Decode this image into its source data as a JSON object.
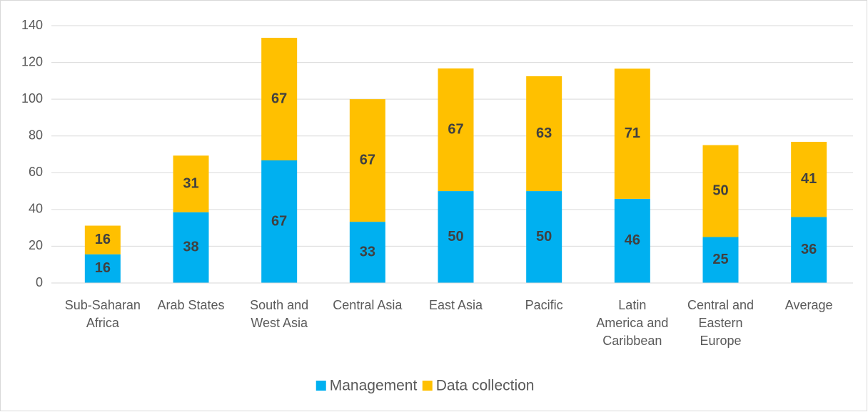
{
  "chart_data": {
    "type": "stacked_bar",
    "categories": [
      "Sub-Saharan Africa",
      "Arab States",
      "South and West Asia",
      "Central Asia",
      "East Asia",
      "Pacific",
      "Latin America and Caribbean",
      "Central and Eastern Europe",
      "Average"
    ],
    "series": [
      {
        "name": "Management",
        "color": "#00b0f0",
        "values": [
          15.6,
          38.5,
          66.7,
          33.3,
          50,
          50,
          45.8,
          25,
          35.9
        ],
        "value_labels": [
          "16",
          "38",
          "67",
          "33",
          "50",
          "50",
          "46",
          "25",
          "36"
        ]
      },
      {
        "name": "Data collection",
        "color": "#ffc000",
        "values": [
          15.6,
          30.8,
          66.7,
          66.7,
          66.7,
          62.5,
          70.8,
          50,
          40.9
        ],
        "value_labels": [
          "16",
          "31",
          "67",
          "67",
          "67",
          "63",
          "71",
          "50",
          "41"
        ]
      }
    ],
    "ylim": [
      0,
      140
    ],
    "yticks": [
      0,
      20,
      40,
      60,
      80,
      100,
      120,
      140
    ],
    "grid": true,
    "legend": "bottom"
  }
}
